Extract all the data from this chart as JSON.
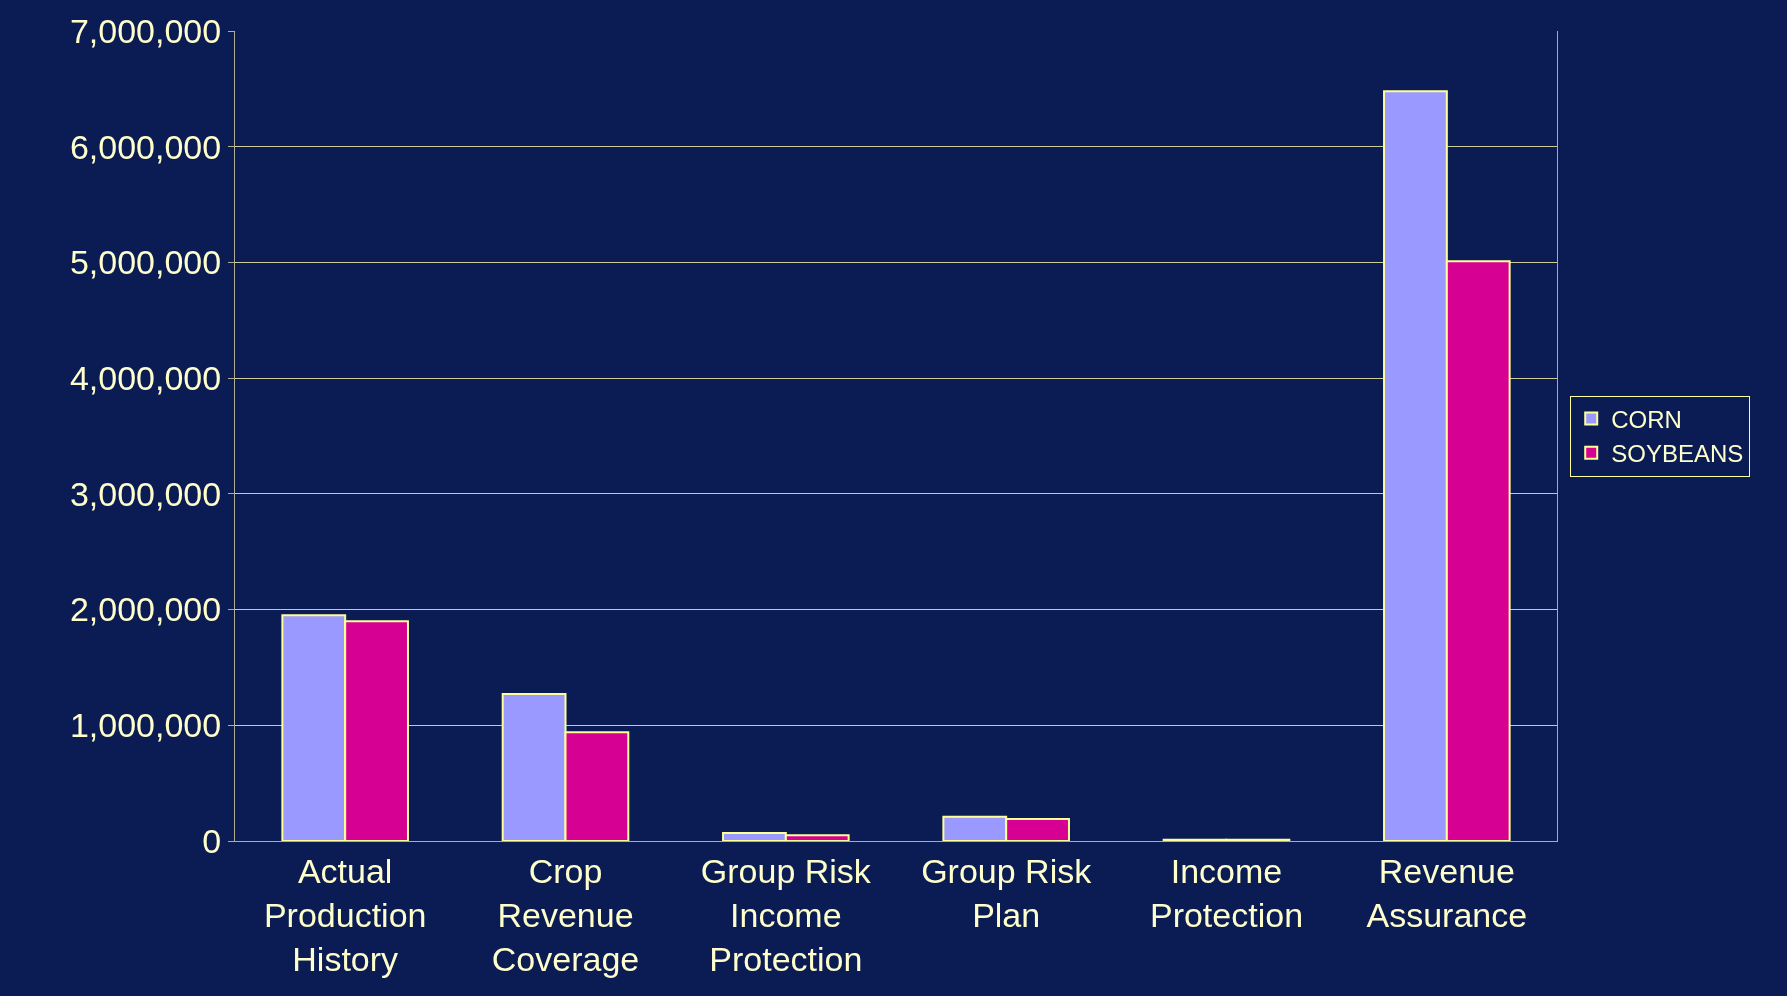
{
  "chart_data": {
    "type": "bar",
    "categories": [
      "Actual Production History",
      "Crop Revenue Coverage",
      "Group Risk Income Protection",
      "Group Risk Plan",
      "Income Protection",
      "Revenue Assurance"
    ],
    "series": [
      {
        "name": "CORN",
        "color": "#9999ff",
        "values": [
          1950000,
          1270000,
          70000,
          210000,
          10000,
          6480000
        ]
      },
      {
        "name": "SOYBEANS",
        "color": "#d60093",
        "values": [
          1900000,
          940000,
          50000,
          190000,
          10000,
          5010000
        ]
      }
    ],
    "ylim": [
      0,
      7000000
    ],
    "yticks": [
      {
        "value": 0,
        "label": "0"
      },
      {
        "value": 1000000,
        "label": "1,000,000"
      },
      {
        "value": 2000000,
        "label": "2,000,000"
      },
      {
        "value": 3000000,
        "label": "3,000,000"
      },
      {
        "value": 4000000,
        "label": "4,000,000"
      },
      {
        "value": 5000000,
        "label": "5,000,000"
      },
      {
        "value": 6000000,
        "label": "6,000,000"
      },
      {
        "value": 7000000,
        "label": "7,000,000"
      }
    ],
    "grid": "y",
    "legend": "right"
  }
}
